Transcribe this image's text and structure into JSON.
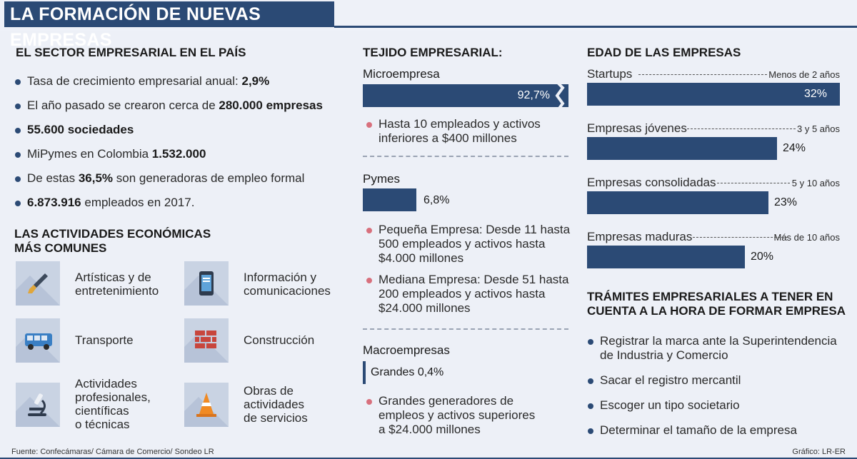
{
  "header": {
    "title": "LA FORMACIÓN DE NUEVAS EMPRESAS"
  },
  "sector": {
    "heading": "EL SECTOR EMPRESARIAL EN EL PAÍS",
    "items": [
      {
        "text": "Tasa de crecimiento empresarial anual: ",
        "bold": "2,9%"
      },
      {
        "text": "El año pasado se crearon cerca de ",
        "bold": "280.000 empresas"
      },
      {
        "text": "",
        "bold": "55.600 sociedades"
      },
      {
        "text": "MiPymes en Colombia ",
        "bold": "1.532.000"
      },
      {
        "pre": "De estas ",
        "bold": "36,5%",
        "post": " son generadoras de empleo formal"
      },
      {
        "bold": "6.873.916",
        "post": " empleados en 2017."
      }
    ]
  },
  "actividades": {
    "heading_line1": "LAS ACTIVIDADES ECONÓMICAS",
    "heading_line2": "MÁS COMUNES",
    "items": [
      {
        "icon": "paintbrush-icon",
        "line1": "Artísticas y de",
        "line2": "entretenimiento"
      },
      {
        "icon": "smartphone-icon",
        "line1": "Información y",
        "line2": "comunicaciones"
      },
      {
        "icon": "bus-icon",
        "line1": "Transporte"
      },
      {
        "icon": "brick-wall-icon",
        "line1": "Construcción"
      },
      {
        "icon": "microscope-icon",
        "line1": "Actividades",
        "line2": "profesionales,",
        "line3": "científicas",
        "line4": "o técnicas"
      },
      {
        "icon": "traffic-cone-icon",
        "line1": "Obras de",
        "line2": "actividades",
        "line3": "de servicios"
      }
    ]
  },
  "tejido": {
    "heading": "TEJIDO EMPRESARIAL:",
    "micro": {
      "label": "Microempresa",
      "value_label": "92,7%",
      "note_line1": "Hasta 10 empleados y activos",
      "note_line2": "inferiores a $400 millones"
    },
    "pymes": {
      "label": "Pymes",
      "value_label": "6,8%",
      "notes": [
        {
          "l1": "Pequeña Empresa: Desde 11 hasta",
          "l2": "500 empleados y activos hasta",
          "l3": "$4.000 millones"
        },
        {
          "l1": "Mediana Empresa: Desde 51 hasta",
          "l2": "200 empleados y activos hasta",
          "l3": "$24.000 millones"
        }
      ]
    },
    "macro": {
      "label": "Macroempresas",
      "value_label": "Grandes 0,4%",
      "note_line1": "Grandes generadores de",
      "note_line2": "empleos y activos superiores",
      "note_line3": "a $24.000 millones"
    }
  },
  "edad": {
    "heading": "EDAD DE LAS EMPRESAS",
    "rows": [
      {
        "label": "Startups",
        "range": "Menos de 2 años",
        "value_label": "32%"
      },
      {
        "label": "Empresas jóvenes",
        "range": "3 y 5 años",
        "value_label": "24%"
      },
      {
        "label": "Empresas consolidadas",
        "range": "5 y 10 años",
        "value_label": "23%"
      },
      {
        "label": "Empresas maduras",
        "range": "Más de 10 años",
        "value_label": "20%"
      }
    ]
  },
  "tramites": {
    "heading_line1": "TRÁMITES EMPRESARIALES A TENER EN",
    "heading_line2": "CUENTA A LA HORA DE FORMAR EMPRESA",
    "items": [
      {
        "l1": "Registrar la marca ante la Superintendencia",
        "l2": "de Industria y Comercio"
      },
      {
        "l1": "Sacar el registro mercantil"
      },
      {
        "l1": "Escoger un tipo societario"
      },
      {
        "l1": "Determinar el tamaño de la empresa"
      }
    ]
  },
  "footer": {
    "source": "Fuente: Confecámaras/ Cámara de Comercio/ Sondeo LR",
    "credit": "Gráfico: LR-ER"
  },
  "colors": {
    "primary": "#2b4a75",
    "bullet_pink": "#d8707d",
    "background": "#edf0f7"
  },
  "chart_data": [
    {
      "type": "bar",
      "title": "TEJIDO EMPRESARIAL:",
      "categories": [
        "Microempresa",
        "Pymes",
        "Macroempresas"
      ],
      "values": [
        92.7,
        6.8,
        0.4
      ],
      "unit": "%"
    },
    {
      "type": "bar",
      "title": "EDAD DE LAS EMPRESAS",
      "categories": [
        "Startups",
        "Empresas jóvenes",
        "Empresas consolidadas",
        "Empresas maduras"
      ],
      "values": [
        32,
        24,
        23,
        20
      ],
      "unit": "%"
    }
  ]
}
